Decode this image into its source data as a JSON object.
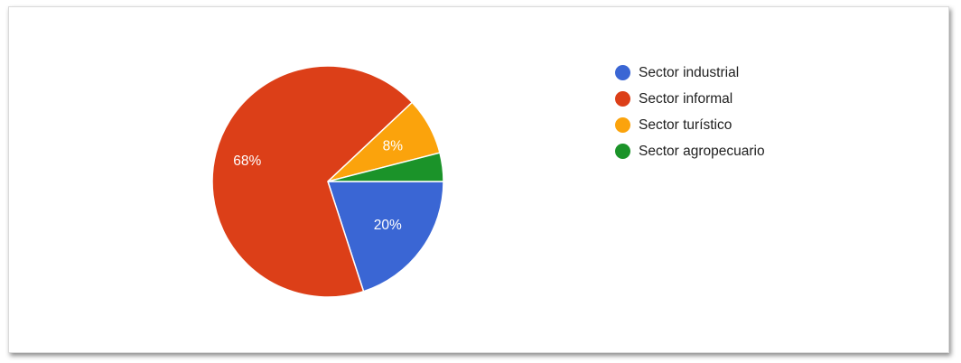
{
  "chart_data": {
    "type": "pie",
    "title": "",
    "slices": [
      {
        "label": "Sector industrial",
        "value": 20,
        "value_label": "20%",
        "color": "#3a66d4"
      },
      {
        "label": "Sector informal",
        "value": 68,
        "value_label": "68%",
        "color": "#dc3f18"
      },
      {
        "label": "Sector turístico",
        "value": 8,
        "value_label": "8%",
        "color": "#fba30c"
      },
      {
        "label": "Sector agropecuario",
        "value": 4,
        "value_label": "",
        "color": "#1b9329"
      }
    ],
    "start_angle_deg": 0,
    "direction": "clockwise",
    "legend_position": "right"
  }
}
